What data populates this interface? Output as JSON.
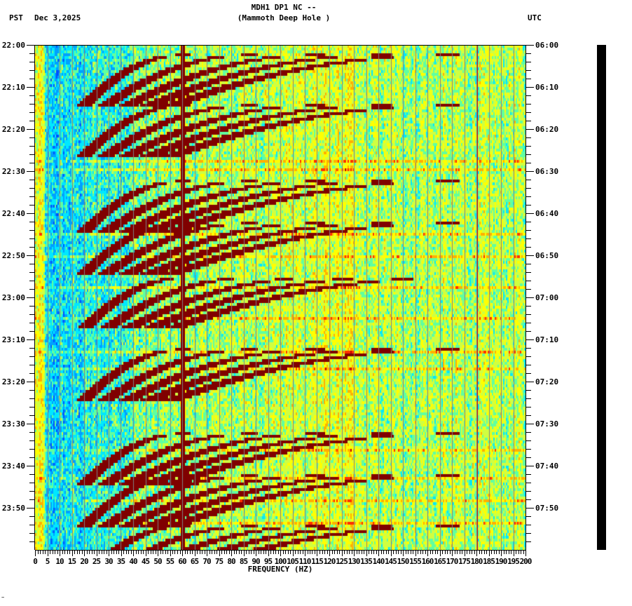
{
  "header": {
    "station_line": "MDH1 DP1 NC --",
    "location_line": "(Mammoth Deep Hole )",
    "left_timezone": "PST",
    "date": "Dec 3,2025",
    "right_timezone": "UTC"
  },
  "corner_mark": "~",
  "colors": {
    "background": "#ffffff",
    "axis": "#000000",
    "gridline": "#808080",
    "colormap": [
      "#0050ff",
      "#00a0ff",
      "#00e8ff",
      "#60ffa0",
      "#d0ff40",
      "#ffff00",
      "#ffb000",
      "#ff3000",
      "#c00000",
      "#800000"
    ]
  },
  "chart_data": {
    "type": "heatmap",
    "title": "MDH1 DP1 NC -- (Mammoth Deep Hole )",
    "subtitle": "PST Dec 3,2025 / UTC",
    "xlabel": "FREQUENCY (HZ)",
    "ylabel_left": "PST",
    "ylabel_right": "UTC",
    "xlim": [
      0,
      200
    ],
    "x_ticks": [
      0,
      5,
      10,
      15,
      20,
      25,
      30,
      35,
      40,
      45,
      50,
      55,
      60,
      65,
      70,
      75,
      80,
      85,
      90,
      95,
      100,
      105,
      110,
      115,
      120,
      125,
      130,
      135,
      140,
      145,
      150,
      155,
      160,
      165,
      170,
      175,
      180,
      185,
      190,
      195,
      200
    ],
    "x_tick_labels": [
      "0",
      "5",
      "10",
      "15",
      "20",
      "25",
      "30",
      "35",
      "40",
      "45",
      "50",
      "55",
      "60",
      "65",
      "70",
      "75",
      "80",
      "85",
      "90",
      "95",
      "100",
      "105",
      "110",
      "115",
      "120",
      "125",
      "130",
      "135",
      "140",
      "145",
      "150",
      "155",
      "160",
      "165",
      "170",
      "175",
      "180",
      "185",
      "190",
      "195",
      "200"
    ],
    "y_ticks_left": [
      "22:00",
      "22:10",
      "22:20",
      "22:30",
      "22:40",
      "22:50",
      "23:00",
      "23:10",
      "23:20",
      "23:30",
      "23:40",
      "23:50"
    ],
    "y_ticks_right": [
      "06:00",
      "06:10",
      "06:20",
      "06:30",
      "06:40",
      "06:50",
      "07:00",
      "07:10",
      "07:20",
      "07:30",
      "07:40",
      "07:50"
    ],
    "time_span_minutes": 120,
    "minor_tick_minutes": 2,
    "grid": "vertical gray lines every 5 Hz",
    "features": {
      "persistent_line_hz": 60,
      "secondary_line_hz": 180,
      "low_freq_quiet_band_hz": [
        0,
        40
      ],
      "high_freq_broadband_from_hz": 130,
      "gliding_harmonic_events_start_minutes": [
        2,
        14,
        32,
        42,
        55,
        72,
        92,
        102,
        114
      ],
      "fundamental_glide_hz": [
        20,
        60
      ],
      "glide_duration_minutes": 12,
      "harmonic_count": 5
    }
  }
}
